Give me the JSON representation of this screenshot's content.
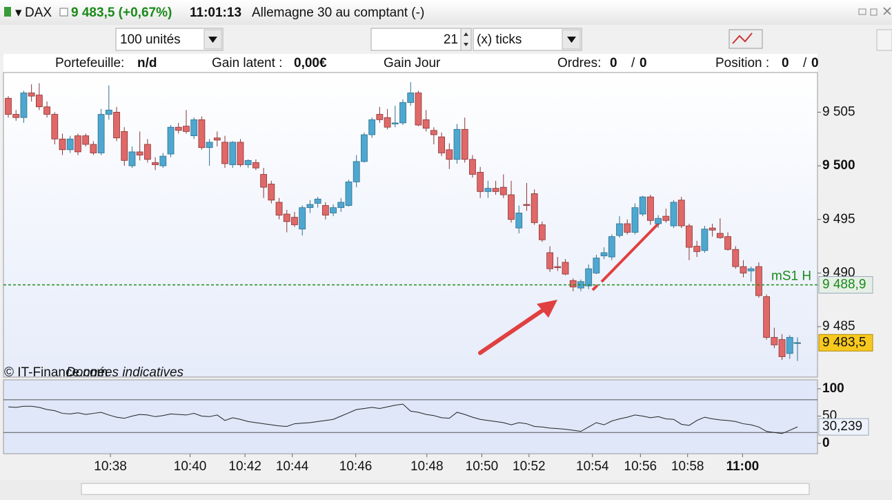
{
  "header": {
    "symbol": "DAX",
    "quote": "9 483,5 (+0,67%)",
    "time": "11:01:13",
    "name": "Allemagne 30 au comptant (-)"
  },
  "toolbar": {
    "quantity": "100 unités",
    "ticks_count": "21",
    "ticks_unit": "(x) ticks"
  },
  "info_bar": {
    "portfolio_label": "Portefeuille:",
    "portfolio_value": "n/d",
    "gain_label": "Gain latent :",
    "gain_value": "0,00€",
    "day_gain_label": "Gain Jour",
    "orders_label": "Ordres:",
    "orders_a": "0",
    "orders_sep": "/",
    "orders_b": "0",
    "position_label": "Position :",
    "position_a": "0",
    "position_sep": "/",
    "position_b": "0"
  },
  "chart_data": [
    {
      "type": "candlestick",
      "credit": "© IT-Finance.com",
      "credit_note": "Données indicatives",
      "up_color": "#4ea7cf",
      "down_color": "#e06868",
      "ylim": [
        9480.3,
        9508.7
      ],
      "yticks": [
        {
          "value": 9485,
          "label": "9 485"
        },
        {
          "value": 9490,
          "label": "9 490"
        },
        {
          "value": 9495,
          "label": "9 495"
        },
        {
          "value": 9500,
          "label": "9 500"
        },
        {
          "value": 9505,
          "label": "9 505"
        }
      ],
      "level": {
        "name": "mS1 H",
        "value": 9488.9,
        "label": "9 488,9",
        "color": "#1a8a1a"
      },
      "current": {
        "value": 9483.5,
        "label": "9 483,5"
      },
      "open": [
        9506.3,
        9504.8,
        9504.5,
        9506.8,
        9506.6,
        9505.5,
        9504.8,
        9502.5,
        9501.5,
        9502.8,
        9502.8,
        9502.0,
        9501.2,
        9504.8,
        9505.0,
        9503.2,
        9500.0,
        9501.3,
        9502.0,
        9500.3,
        9500.0,
        9501.1,
        9503.6,
        9503.7,
        9502.8,
        9504.3,
        9501.7,
        9502.6,
        9502.2,
        9500.1,
        9502.2,
        9500.1,
        9500.3,
        9499.2,
        9498.3,
        9496.6,
        9495.5,
        9495.2,
        9494.1,
        9496.1,
        9496.5,
        9496.3,
        9495.6,
        9496.1,
        9496.3,
        9498.5,
        9500.4,
        9502.9,
        9504.8,
        9504.5,
        9503.9,
        9504.0,
        9505.9,
        9506.8,
        9504.3,
        9503.3,
        9502.7,
        9501.5,
        9500.6,
        9503.4,
        9500.6,
        9499.4,
        9497.6,
        9497.9,
        9498.0,
        9497.3,
        9494.2,
        9496.4,
        9497.4,
        9494.5,
        9491.9,
        9490.6,
        9491.0,
        9489.3,
        9488.6,
        9488.8,
        9490.0,
        9491.6,
        9491.5,
        9493.5,
        9494.6,
        9493.8,
        9495.5,
        9497.1,
        9494.6,
        9495.3,
        9494.4,
        9496.8,
        9494.4,
        9492.5,
        9492.1,
        9494.2,
        9493.7,
        9493.4,
        9492.2,
        9490.6,
        9490.2,
        9490.6,
        9487.8,
        9484.0,
        9483.8,
        9482.5,
        9483.5
      ],
      "high": [
        9506.5,
        9505.2,
        9507.0,
        9507.6,
        9507.7,
        9506.0,
        9505.0,
        9503.0,
        9502.8,
        9503.0,
        9503.0,
        9502.3,
        9505.3,
        9507.5,
        9505.5,
        9503.6,
        9501.8,
        9503.2,
        9502.5,
        9500.8,
        9501.2,
        9503.8,
        9504.0,
        9505.2,
        9504.5,
        9504.6,
        9502.5,
        9503.2,
        9502.8,
        9502.3,
        9502.5,
        9500.6,
        9500.6,
        9499.8,
        9498.6,
        9497.0,
        9495.9,
        9495.7,
        9496.3,
        9496.8,
        9497.1,
        9496.6,
        9496.4,
        9497.0,
        9498.7,
        9501.0,
        9503.1,
        9504.5,
        9505.5,
        9505.3,
        9505.6,
        9506.2,
        9507.8,
        9507.0,
        9505.2,
        9503.6,
        9503.1,
        9502.1,
        9503.9,
        9504.5,
        9501.0,
        9499.9,
        9498.6,
        9498.6,
        9499.2,
        9498.6,
        9496.3,
        9498.4,
        9497.8,
        9494.8,
        9492.5,
        9491.5,
        9491.3,
        9489.5,
        9489.4,
        9490.8,
        9491.7,
        9492.4,
        9493.6,
        9495.3,
        9495.0,
        9496.5,
        9497.2,
        9497.3,
        9495.4,
        9496.0,
        9496.8,
        9497.1,
        9494.6,
        9493.0,
        9494.4,
        9494.6,
        9495.1,
        9493.8,
        9492.5,
        9491.2,
        9490.6,
        9491.0,
        9488.0,
        9484.9,
        9484.3,
        9484.2,
        9484.0
      ],
      "low": [
        9504.5,
        9504.2,
        9504.0,
        9506.0,
        9505.2,
        9504.5,
        9502.0,
        9501.0,
        9501.2,
        9501.0,
        9501.8,
        9501.0,
        9501.0,
        9504.3,
        9502.3,
        9500.0,
        9499.8,
        9500.5,
        9500.3,
        9499.6,
        9499.8,
        9500.8,
        9503.0,
        9503.0,
        9502.5,
        9501.5,
        9500.0,
        9501.8,
        9499.8,
        9499.8,
        9499.9,
        9499.8,
        9499.6,
        9497.0,
        9496.5,
        9495.0,
        9493.8,
        9494.3,
        9493.5,
        9495.6,
        9496.1,
        9495.0,
        9495.3,
        9495.7,
        9496.2,
        9498.0,
        9500.3,
        9502.6,
        9504.0,
        9503.4,
        9503.6,
        9503.8,
        9505.6,
        9503.7,
        9503.2,
        9502.0,
        9500.9,
        9499.7,
        9500.2,
        9500.3,
        9498.9,
        9497.0,
        9497.0,
        9497.3,
        9497.0,
        9494.7,
        9493.7,
        9495.8,
        9494.5,
        9492.9,
        9490.1,
        9490.2,
        9489.8,
        9488.3,
        9488.3,
        9488.5,
        9489.9,
        9491.3,
        9491.2,
        9493.3,
        9493.6,
        9493.6,
        9495.3,
        9494.5,
        9494.2,
        9494.7,
        9494.2,
        9494.2,
        9491.2,
        9491.5,
        9491.9,
        9493.4,
        9493.2,
        9492.1,
        9490.4,
        9489.6,
        9489.2,
        9487.7,
        9483.8,
        9483.0,
        9481.9,
        9482.0,
        9481.8
      ],
      "close": [
        9504.8,
        9504.5,
        9506.8,
        9506.5,
        9505.5,
        9504.8,
        9502.5,
        9501.5,
        9502.5,
        9501.3,
        9502.0,
        9501.2,
        9504.8,
        9505.2,
        9502.6,
        9500.5,
        9501.3,
        9501.0,
        9500.6,
        9500.1,
        9500.9,
        9503.6,
        9503.3,
        9503.2,
        9504.3,
        9501.7,
        9502.2,
        9502.4,
        9500.2,
        9502.2,
        9500.1,
        9500.5,
        9499.8,
        9498.0,
        9496.8,
        9495.4,
        9494.8,
        9494.5,
        9496.1,
        9496.4,
        9496.9,
        9495.4,
        9496.1,
        9496.6,
        9498.5,
        9500.4,
        9502.9,
        9504.3,
        9504.3,
        9503.6,
        9504.0,
        9505.9,
        9506.8,
        9503.8,
        9503.5,
        9502.9,
        9501.2,
        9500.6,
        9503.4,
        9500.6,
        9499.2,
        9497.6,
        9497.9,
        9497.6,
        9497.3,
        9495.0,
        9495.6,
        9496.3,
        9494.7,
        9493.1,
        9490.4,
        9490.5,
        9489.9,
        9488.7,
        9489.2,
        9490.4,
        9491.4,
        9491.9,
        9493.4,
        9494.6,
        9493.8,
        9496.1,
        9497.1,
        9494.9,
        9495.1,
        9494.9,
        9496.6,
        9494.4,
        9492.4,
        9492.0,
        9494.1,
        9494.0,
        9493.3,
        9492.2,
        9490.6,
        9490.0,
        9490.4,
        9487.9,
        9484.0,
        9483.3,
        9482.2,
        9484.0,
        9483.5
      ]
    },
    {
      "type": "line",
      "color": "#222222",
      "ylim": [
        -19,
        116.5
      ],
      "yticks": [
        0,
        50,
        100
      ],
      "levels": [
        80,
        20
      ],
      "current": {
        "value": 30.239,
        "label": "30,239"
      },
      "values": [
        67,
        66,
        68,
        68,
        66,
        62,
        60,
        55,
        54,
        56,
        53,
        55,
        57,
        52,
        48,
        46,
        50,
        53,
        52,
        49,
        51,
        54,
        53,
        52,
        55,
        50,
        49,
        52,
        42,
        47,
        44,
        40,
        38,
        36,
        34,
        32,
        31,
        36,
        37,
        38,
        40,
        42,
        44,
        50,
        56,
        62,
        64,
        66,
        64,
        67,
        70,
        72,
        59,
        57,
        53,
        51,
        47,
        46,
        57,
        53,
        48,
        44,
        42,
        40,
        38,
        34,
        38,
        36,
        31,
        30,
        28,
        27,
        26,
        24,
        22,
        30,
        38,
        34,
        41,
        45,
        48,
        52,
        50,
        47,
        49,
        45,
        44,
        35,
        33,
        42,
        48,
        45,
        43,
        42,
        40,
        36,
        34,
        30,
        22,
        20,
        18,
        24,
        30.239
      ],
      "xticks": [
        {
          "value": 13.2,
          "label": "10:38"
        },
        {
          "value": 23.5,
          "label": "10:40"
        },
        {
          "value": 30.6,
          "label": "10:42"
        },
        {
          "value": 36.7,
          "label": "10:44"
        },
        {
          "value": 44.9,
          "label": "10:46"
        },
        {
          "value": 54.1,
          "label": "10:48"
        },
        {
          "value": 61.2,
          "label": "10:50"
        },
        {
          "value": 67.3,
          "label": "10:52"
        },
        {
          "value": 75.5,
          "label": "10:54"
        },
        {
          "value": 81.7,
          "label": "10:56"
        },
        {
          "value": 87.8,
          "label": "10:58"
        },
        {
          "value": 94.9,
          "label": "11:00"
        }
      ]
    }
  ]
}
